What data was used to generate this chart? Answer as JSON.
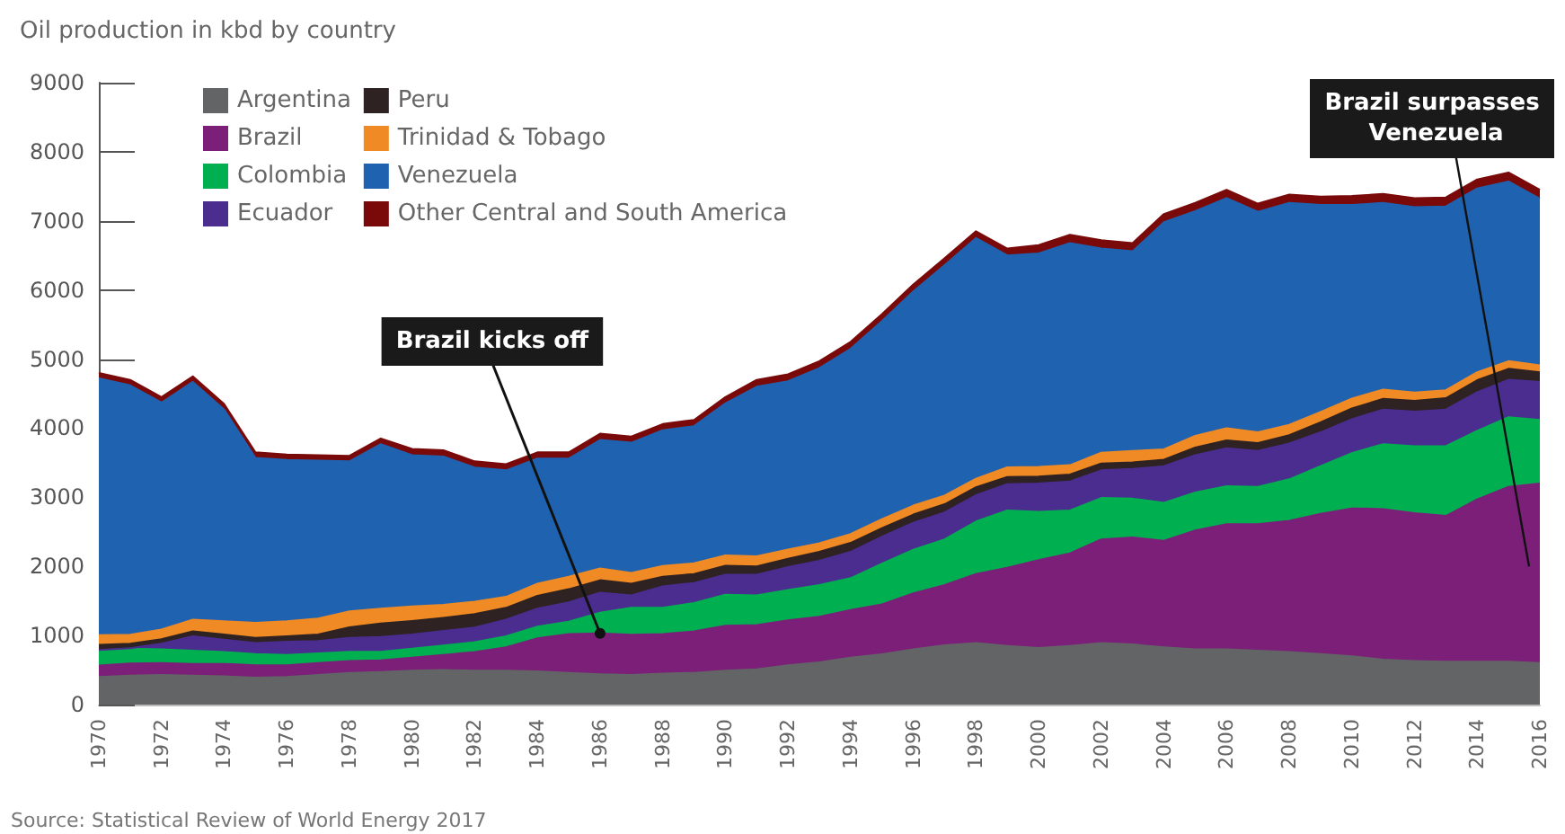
{
  "chart_data": {
    "type": "area",
    "stacked": true,
    "title": "Oil production in kbd by country",
    "categories": [
      "1970",
      null,
      "1972",
      null,
      "1974",
      null,
      "1976",
      null,
      "1978",
      null,
      "1980",
      null,
      "1982",
      null,
      "1984",
      null,
      "1986",
      null,
      "1988",
      null,
      "1990",
      null,
      "1992",
      null,
      "1994",
      null,
      "1996",
      null,
      "1998",
      null,
      "2000",
      null,
      "2002",
      null,
      "2004",
      null,
      "2006",
      null,
      "2008",
      null,
      "2010",
      null,
      "2012",
      null,
      "2014",
      null,
      "2016"
    ],
    "series": [
      {
        "name": "Argentina",
        "color": "#636466",
        "values": [
          400,
          420,
          430,
          420,
          410,
          390,
          400,
          430,
          460,
          470,
          490,
          500,
          490,
          490,
          480,
          460,
          440,
          430,
          450,
          460,
          490,
          510,
          570,
          610,
          680,
          730,
          800,
          860,
          890,
          850,
          820,
          850,
          890,
          870,
          830,
          800,
          800,
          780,
          760,
          730,
          700,
          650,
          630,
          620,
          620,
          620,
          600
        ]
      },
      {
        "name": "Brazil",
        "color": "#7b1f78",
        "values": [
          165,
          175,
          170,
          170,
          180,
          180,
          170,
          170,
          170,
          170,
          190,
          220,
          270,
          340,
          480,
          560,
          590,
          580,
          570,
          600,
          650,
          640,
          650,
          660,
          690,
          720,
          810,
          870,
          1000,
          1130,
          1270,
          1340,
          1500,
          1550,
          1540,
          1720,
          1810,
          1830,
          1900,
          2030,
          2140,
          2180,
          2140,
          2110,
          2350,
          2530,
          2600
        ]
      },
      {
        "name": "Colombia",
        "color": "#00b050",
        "values": [
          220,
          215,
          200,
          190,
          170,
          160,
          150,
          140,
          135,
          125,
          130,
          135,
          145,
          160,
          170,
          180,
          300,
          390,
          380,
          410,
          450,
          430,
          440,
          460,
          460,
          590,
          630,
          660,
          760,
          830,
          700,
          620,
          600,
          560,
          550,
          550,
          550,
          540,
          600,
          690,
          800,
          940,
          970,
          1010,
          990,
          1010,
          920
        ]
      },
      {
        "name": "Ecuador",
        "color": "#4a2d8f",
        "values": [
          5,
          5,
          80,
          210,
          180,
          160,
          190,
          180,
          200,
          215,
          205,
          210,
          210,
          240,
          260,
          280,
          290,
          180,
          310,
          290,
          290,
          300,
          330,
          350,
          380,
          390,
          390,
          390,
          380,
          380,
          410,
          420,
          400,
          430,
          530,
          540,
          550,
          520,
          520,
          490,
          490,
          500,
          500,
          530,
          560,
          540,
          550
        ]
      },
      {
        "name": "Peru",
        "color": "#2e2222",
        "values": [
          75,
          65,
          65,
          70,
          75,
          75,
          80,
          95,
          155,
          195,
          195,
          190,
          195,
          170,
          185,
          190,
          180,
          170,
          140,
          130,
          130,
          120,
          120,
          130,
          130,
          125,
          120,
          120,
          115,
          105,
          100,
          100,
          100,
          95,
          95,
          110,
          115,
          115,
          120,
          145,
          155,
          155,
          155,
          165,
          175,
          160,
          140
        ]
      },
      {
        "name": "Trinidad & Tobago",
        "color": "#f08a24",
        "values": [
          140,
          130,
          140,
          170,
          190,
          220,
          215,
          230,
          230,
          215,
          210,
          190,
          180,
          160,
          175,
          180,
          170,
          155,
          155,
          155,
          150,
          145,
          135,
          125,
          130,
          130,
          130,
          125,
          125,
          140,
          140,
          135,
          155,
          165,
          150,
          170,
          175,
          155,
          150,
          150,
          145,
          135,
          120,
          115,
          115,
          110,
          100
        ]
      },
      {
        "name": "Venezuela",
        "color": "#1f62b0",
        "values": [
          3715,
          3610,
          3285,
          3440,
          3065,
          2385,
          2335,
          2285,
          2170,
          2380,
          2190,
          2145,
          1940,
          1830,
          1810,
          1710,
          1860,
          1885,
          1965,
          1985,
          2200,
          2455,
          2435,
          2535,
          2680,
          2865,
          3100,
          3335,
          3480,
          3065,
          3090,
          3215,
          2955,
          2890,
          3285,
          3250,
          3330,
          3190,
          3210,
          2995,
          2800,
          2700,
          2685,
          2660,
          2660,
          2600,
          2410
        ]
      },
      {
        "name": "Other Central and South America",
        "color": "#7a0a0a",
        "values": [
          80,
          80,
          80,
          80,
          80,
          80,
          80,
          80,
          80,
          80,
          90,
          90,
          90,
          90,
          90,
          90,
          90,
          90,
          90,
          90,
          90,
          100,
          100,
          100,
          100,
          100,
          100,
          100,
          100,
          100,
          120,
          120,
          120,
          120,
          120,
          120,
          120,
          120,
          120,
          120,
          130,
          130,
          130,
          130,
          130,
          130,
          130
        ]
      }
    ],
    "ylim": [
      0,
      9000
    ],
    "yticks": [
      0,
      1000,
      2000,
      3000,
      4000,
      5000,
      6000,
      7000,
      8000,
      9000
    ],
    "grid": false,
    "legend": "top left",
    "annotations": [
      {
        "text": "Brazil kicks off",
        "x": "1986",
        "y": 1030
      },
      "Brazil surpasses Venezuela",
      "Source: Statistical Review of World Energy 2017"
    ]
  }
}
